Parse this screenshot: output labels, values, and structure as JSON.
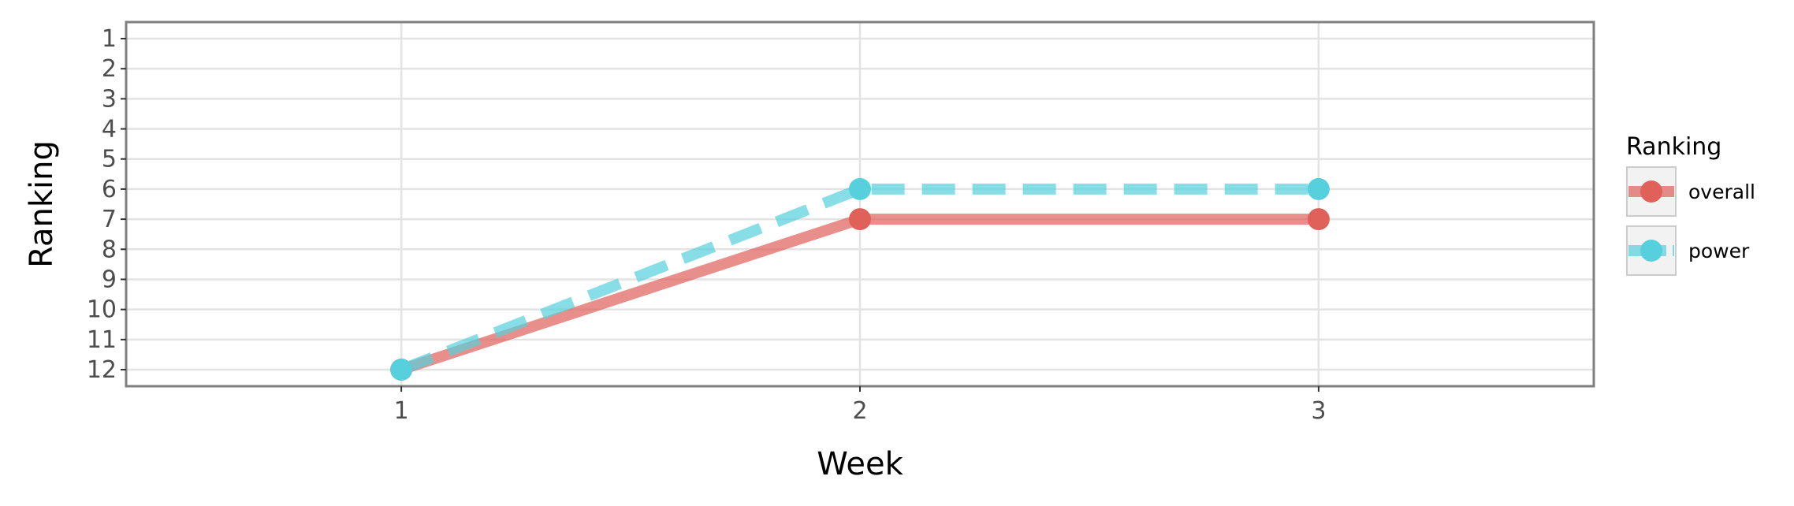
{
  "chart_data": {
    "type": "line",
    "xlabel": "Week",
    "ylabel": "Ranking",
    "x": [
      1,
      2,
      3
    ],
    "xlim": [
      0.4,
      3.6
    ],
    "ylim": [
      12.55,
      0.45
    ],
    "y_reversed": true,
    "x_ticks": [
      "1",
      "2",
      "3"
    ],
    "y_ticks": [
      "1",
      "2",
      "3",
      "4",
      "5",
      "6",
      "7",
      "8",
      "9",
      "10",
      "11",
      "12"
    ],
    "grid": true,
    "legend": {
      "title": "Ranking",
      "placement": "right"
    },
    "series": [
      {
        "name": "overall",
        "values": [
          12,
          7,
          7
        ],
        "color": "#e0605a",
        "line_style": "solid"
      },
      {
        "name": "power",
        "values": [
          12,
          6,
          6
        ],
        "color": "#56d0dc",
        "line_style": "dashed"
      }
    ]
  }
}
